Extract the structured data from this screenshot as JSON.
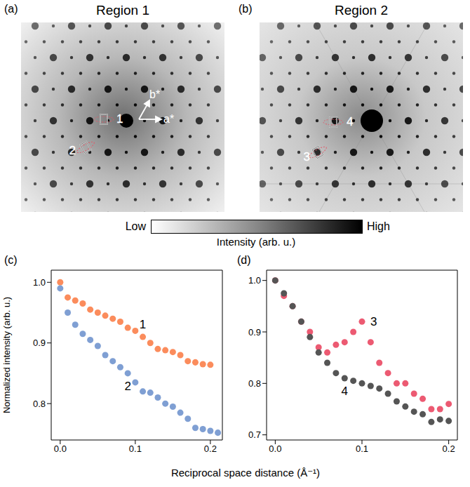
{
  "figure": {
    "xlabel": "Reciprocal space distance (Å⁻¹)",
    "colorbar": {
      "low": "Low",
      "high": "High",
      "label": "Intensity (arb. u.)"
    },
    "images": [
      {
        "panel": "(a)",
        "title": "Region 1",
        "markers": [
          "1",
          "2"
        ],
        "axes": [
          "a*",
          "b*"
        ]
      },
      {
        "panel": "(b)",
        "title": "Region 2",
        "markers": [
          "4",
          "3"
        ],
        "axes": []
      }
    ]
  },
  "chart_data": [
    {
      "type": "scatter",
      "panel": "(c)",
      "marker": "circle",
      "ylabel": "Normalized intensity (arb. u.)",
      "xlim": [
        -0.012,
        0.216
      ],
      "xticks": [
        {
          "value": 0,
          "label": "0.0"
        },
        0.1,
        0.2
      ],
      "ylim": [
        0.74,
        1.02
      ],
      "yticks": [
        0.8,
        0.9,
        {
          "value": 1,
          "label": "1.0"
        }
      ],
      "x": [
        0,
        0.01,
        0.02,
        0.03,
        0.04,
        0.05,
        0.06,
        0.07,
        0.08,
        0.09,
        0.1,
        0.11,
        0.12,
        0.13,
        0.14,
        0.15,
        0.16,
        0.17,
        0.18,
        0.19,
        0.2,
        0.21
      ],
      "series": [
        {
          "name": "1",
          "color": "#fb8c5c",
          "values": [
            1.0,
            0.975,
            0.97,
            0.965,
            0.955,
            0.95,
            0.945,
            0.94,
            0.935,
            0.925,
            0.92,
            0.91,
            0.9,
            0.89,
            0.888,
            0.885,
            0.88,
            0.87,
            0.868,
            0.865,
            0.864,
            null
          ]
        },
        {
          "name": "2",
          "color": "#7f9fd3",
          "values": [
            0.99,
            0.95,
            0.93,
            0.915,
            0.905,
            0.895,
            0.88,
            0.87,
            0.86,
            0.85,
            0.835,
            0.82,
            0.818,
            0.81,
            0.8,
            0.795,
            0.785,
            0.775,
            0.76,
            0.758,
            0.755,
            0.752
          ]
        }
      ]
    },
    {
      "type": "scatter",
      "panel": "(d)",
      "marker": "circle",
      "xlim": [
        -0.01,
        0.21
      ],
      "xticks": [
        {
          "value": 0,
          "label": "0.0"
        },
        0.1,
        0.2
      ],
      "ylim": [
        0.69,
        1.02
      ],
      "yticks": [
        0.7,
        0.8,
        0.9,
        {
          "value": 1,
          "label": "1.0"
        }
      ],
      "x": [
        0,
        0.01,
        0.02,
        0.03,
        0.04,
        0.05,
        0.06,
        0.07,
        0.08,
        0.09,
        0.1,
        0.11,
        0.12,
        0.13,
        0.14,
        0.15,
        0.16,
        0.17,
        0.18,
        0.19,
        0.2
      ],
      "series": [
        {
          "name": "3",
          "color": "#ec5a72",
          "values": [
            1.0,
            0.97,
            0.95,
            0.92,
            0.9,
            0.87,
            0.86,
            0.875,
            0.88,
            0.9,
            0.92,
            0.88,
            0.84,
            0.82,
            0.8,
            0.8,
            0.78,
            0.77,
            0.75,
            0.75,
            0.76
          ]
        },
        {
          "name": "4",
          "color": "#555555",
          "values": [
            1.0,
            0.975,
            0.95,
            0.92,
            0.89,
            0.86,
            0.84,
            0.82,
            0.81,
            0.805,
            0.8,
            0.795,
            0.79,
            0.78,
            0.765,
            0.755,
            0.745,
            0.74,
            0.725,
            0.73,
            0.727
          ]
        }
      ]
    }
  ]
}
